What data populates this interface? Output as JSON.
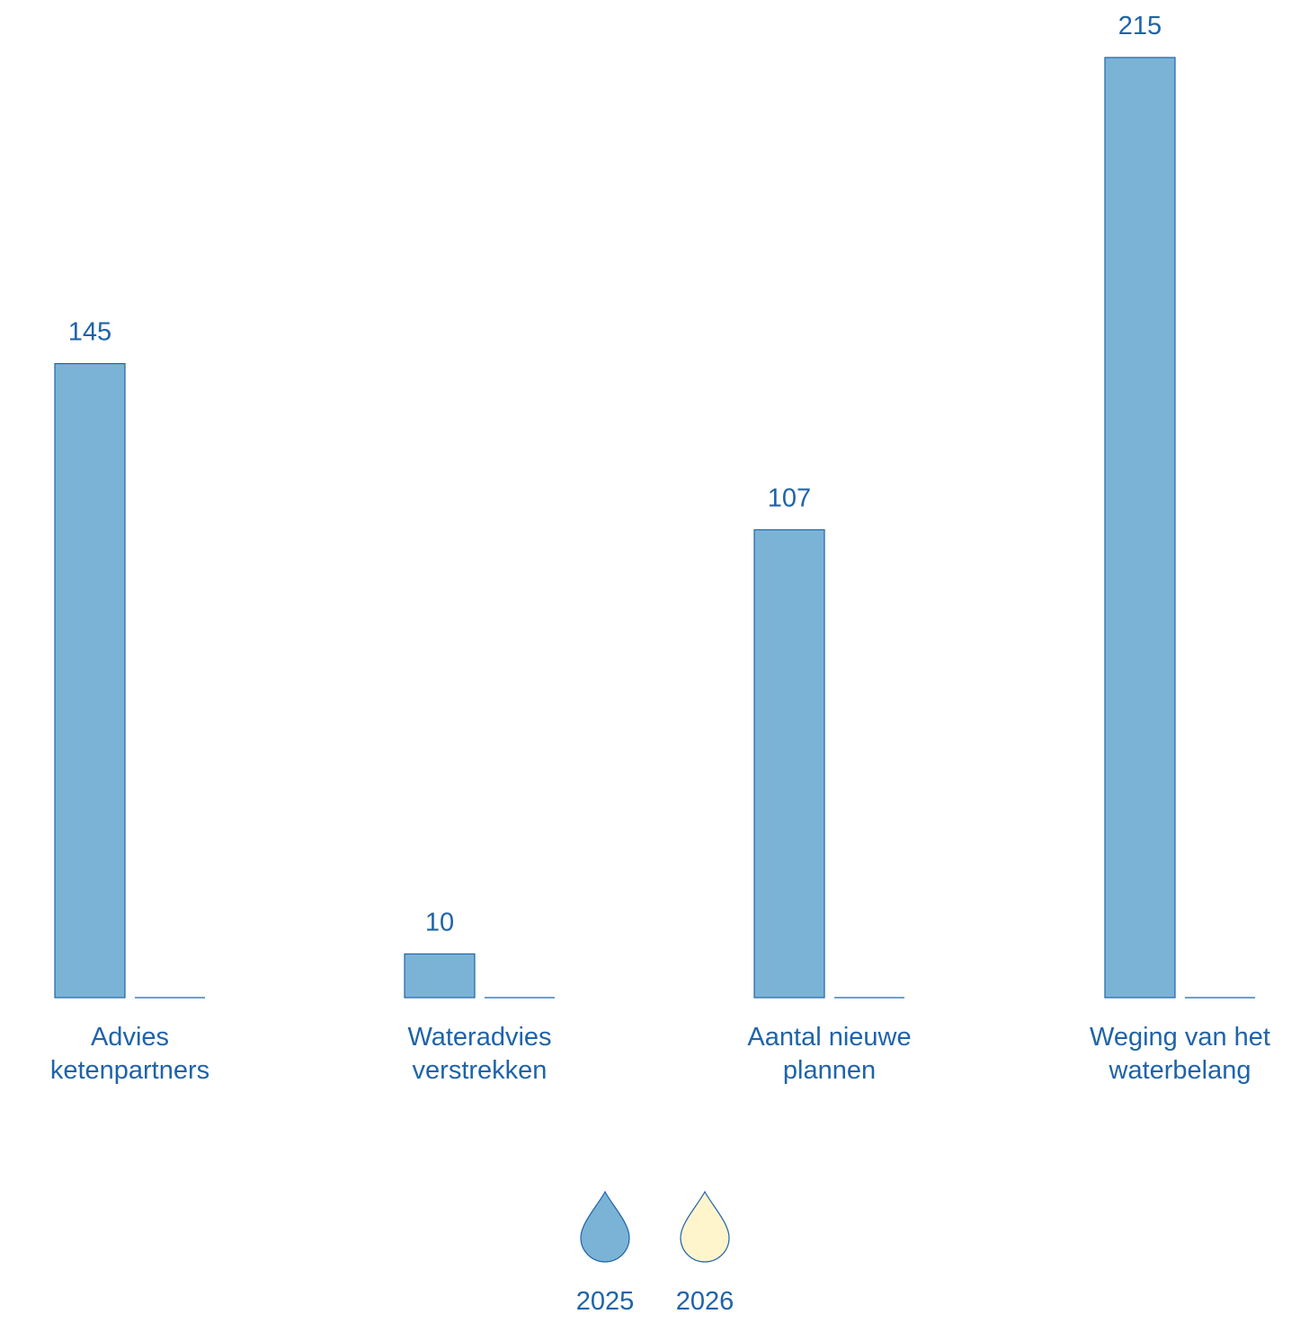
{
  "chart_data": {
    "type": "bar",
    "categories": [
      [
        "Advies",
        "ketenpartners"
      ],
      [
        "Wateradvies",
        "verstrekken"
      ],
      [
        "Aantal nieuwe",
        "plannen"
      ],
      [
        "Weging van het",
        "waterbelang"
      ]
    ],
    "series": [
      {
        "name": "2025",
        "values": [
          145,
          10,
          107,
          215
        ],
        "color": "#7bb3d6"
      },
      {
        "name": "2026",
        "values": [
          0,
          0,
          0,
          0
        ],
        "color": "#fff5cc"
      }
    ],
    "data_labels": [
      "145",
      "10",
      "107",
      "215"
    ],
    "ylim": [
      0,
      215
    ],
    "grid": false,
    "legend_position": "bottom-center",
    "legend_marker": "water-drop",
    "colors": {
      "stroke": "#1f63a9",
      "text": "#1f63a9"
    }
  }
}
